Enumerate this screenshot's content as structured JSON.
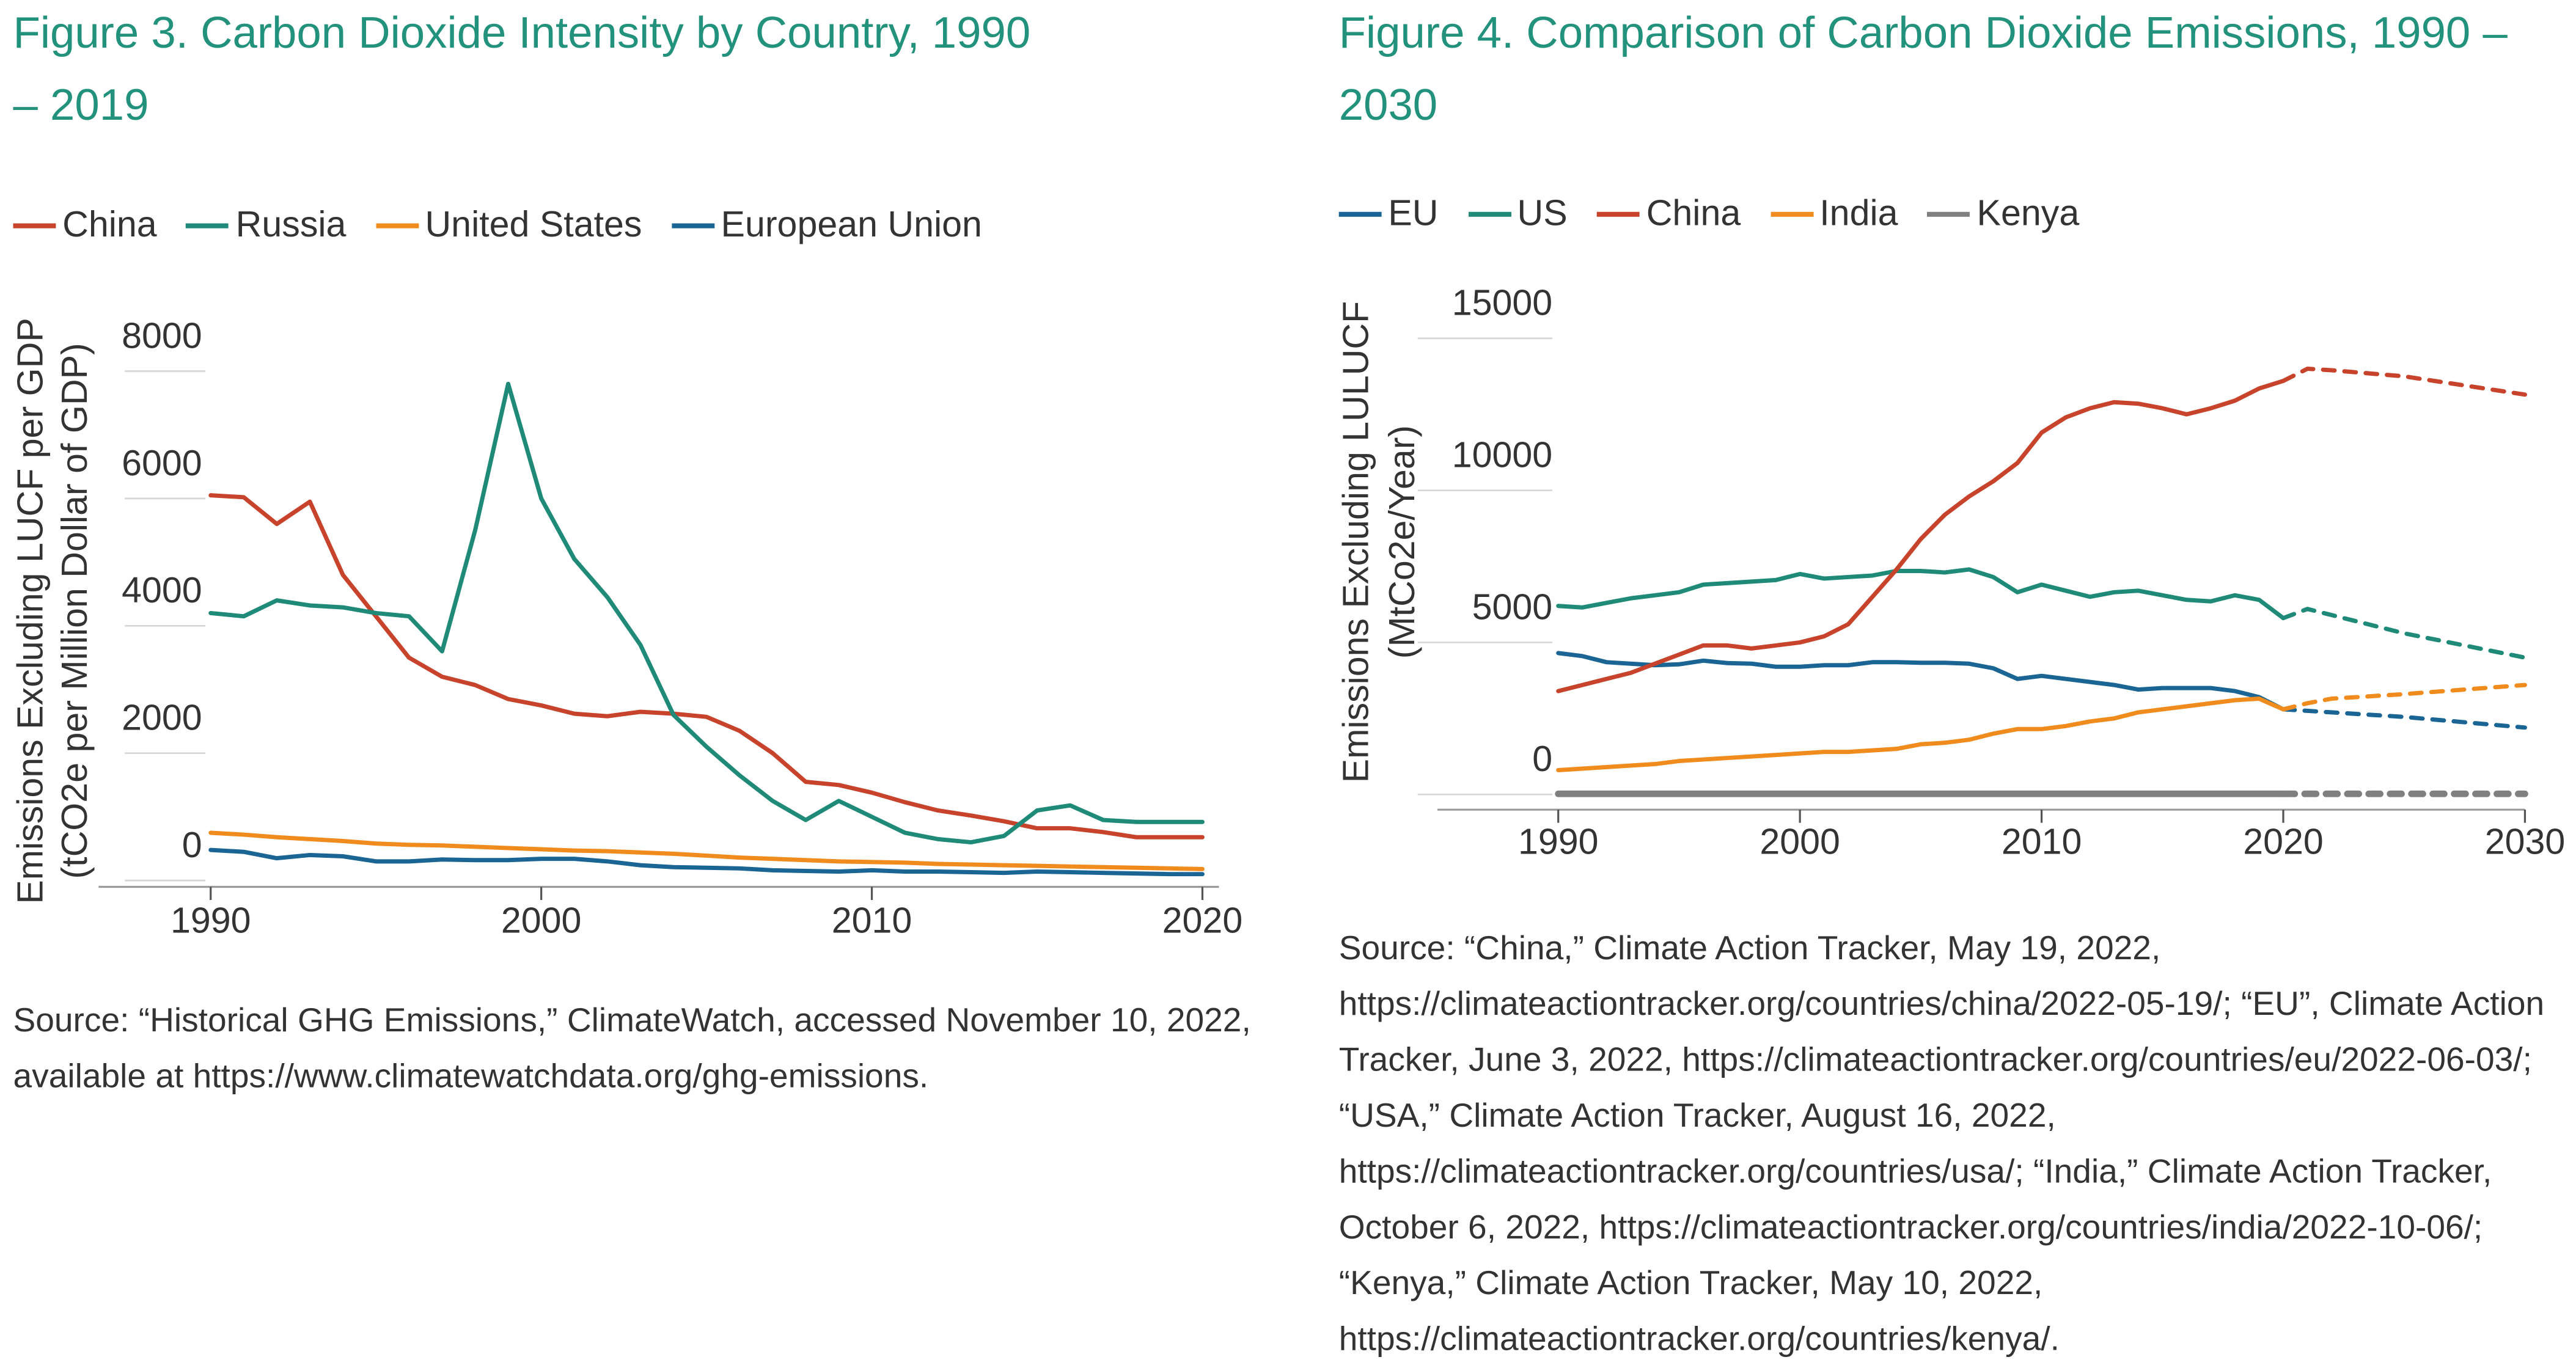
{
  "chart_data": [
    {
      "type": "line",
      "title": "Figure 3. Carbon Dioxide Intensity by Country, 1990 – 2019",
      "ylabel": [
        "Emissions Excluding LUCF per GDP",
        "(tCO2e per Million Dollar of GDP)"
      ],
      "x": [
        1990,
        1991,
        1992,
        1993,
        1994,
        1995,
        1996,
        1997,
        1998,
        1999,
        2000,
        2001,
        2002,
        2003,
        2004,
        2005,
        2006,
        2007,
        2008,
        2009,
        2010,
        2011,
        2012,
        2013,
        2014,
        2015,
        2016,
        2017,
        2018,
        2019,
        2020
      ],
      "series": [
        {
          "name": "China",
          "color": "#c8432b",
          "values": [
            6050,
            6020,
            5600,
            5950,
            4800,
            4150,
            3500,
            3200,
            3070,
            2850,
            2750,
            2620,
            2580,
            2650,
            2620,
            2570,
            2350,
            2000,
            1550,
            1500,
            1380,
            1230,
            1100,
            1020,
            930,
            820,
            820,
            760,
            680,
            680,
            680
          ]
        },
        {
          "name": "Russia",
          "color": "#1f8a78",
          "values": [
            4200,
            4150,
            4400,
            4320,
            4290,
            4200,
            4150,
            3600,
            5500,
            7800,
            6000,
            5050,
            4450,
            3700,
            2600,
            2100,
            1650,
            1250,
            950,
            1250,
            1000,
            750,
            650,
            600,
            700,
            1100,
            1180,
            950,
            920,
            920,
            920
          ]
        },
        {
          "name": "United States",
          "color": "#f08c1e",
          "values": [
            750,
            720,
            680,
            650,
            620,
            580,
            560,
            550,
            530,
            510,
            490,
            470,
            460,
            440,
            420,
            390,
            360,
            340,
            320,
            300,
            290,
            280,
            260,
            250,
            240,
            230,
            220,
            210,
            200,
            190,
            180
          ]
        },
        {
          "name": "European Union",
          "color": "#1a6593",
          "values": [
            480,
            450,
            350,
            400,
            380,
            300,
            300,
            330,
            320,
            320,
            340,
            340,
            300,
            240,
            210,
            200,
            190,
            160,
            150,
            140,
            160,
            140,
            140,
            130,
            120,
            140,
            130,
            120,
            110,
            100,
            100
          ]
        }
      ],
      "xlim": [
        1988,
        2020.5
      ],
      "ylim": [
        -100,
        8000
      ],
      "xticks": [
        1990,
        2000,
        2010,
        2020
      ],
      "yticks": [
        0,
        2000,
        4000,
        6000,
        8000
      ],
      "grid": true,
      "source": "Source: “Historical GHG Emissions,” ClimateWatch, accessed November 10, 2022, available at https://www.climatewatchdata.org/ghg-emissions."
    },
    {
      "type": "line",
      "title": "Figure 4. Comparison of Carbon Dioxide Emissions, 1990 – 2030",
      "ylabel": [
        "Emissions Excluding LULUCF",
        "(MtCo2e/Year)"
      ],
      "x": [
        1990,
        1991,
        1992,
        1993,
        1994,
        1995,
        1996,
        1997,
        1998,
        1999,
        2000,
        2001,
        2002,
        2003,
        2004,
        2005,
        2006,
        2007,
        2008,
        2009,
        2010,
        2011,
        2012,
        2013,
        2014,
        2015,
        2016,
        2017,
        2018,
        2019,
        2020,
        2021,
        2022,
        2025,
        2030
      ],
      "projection_from": 2020,
      "series": [
        {
          "name": "EU",
          "color": "#1a6593",
          "values": [
            4650,
            4550,
            4350,
            4300,
            4250,
            4280,
            4400,
            4320,
            4300,
            4200,
            4200,
            4250,
            4250,
            4350,
            4350,
            4330,
            4330,
            4300,
            4150,
            3800,
            3900,
            3800,
            3700,
            3600,
            3450,
            3500,
            3500,
            3500,
            3400,
            3200,
            2800,
            2750,
            2700,
            2550,
            2200
          ]
        },
        {
          "name": "US",
          "color": "#1f8a78",
          "values": [
            6200,
            6150,
            6300,
            6450,
            6550,
            6650,
            6900,
            6950,
            7000,
            7050,
            7250,
            7100,
            7150,
            7200,
            7350,
            7350,
            7300,
            7400,
            7150,
            6650,
            6900,
            6700,
            6500,
            6650,
            6700,
            6550,
            6400,
            6350,
            6550,
            6400,
            5800,
            6100,
            5900,
            5300,
            4500
          ]
        },
        {
          "name": "China",
          "color": "#c8432b",
          "values": [
            3400,
            3600,
            3800,
            4000,
            4300,
            4600,
            4900,
            4900,
            4800,
            4900,
            5000,
            5200,
            5600,
            6500,
            7400,
            8400,
            9200,
            9800,
            10300,
            10900,
            11900,
            12400,
            12700,
            12900,
            12850,
            12700,
            12500,
            12700,
            12950,
            13350,
            13600,
            14000,
            13950,
            13750,
            13150
          ]
        },
        {
          "name": "India",
          "color": "#f08c1e",
          "values": [
            800,
            850,
            900,
            950,
            1000,
            1100,
            1150,
            1200,
            1250,
            1300,
            1350,
            1400,
            1400,
            1450,
            1500,
            1650,
            1700,
            1800,
            2000,
            2150,
            2150,
            2250,
            2400,
            2500,
            2700,
            2800,
            2900,
            3000,
            3100,
            3150,
            2800,
            3000,
            3150,
            3300,
            3600
          ]
        },
        {
          "name": "Kenya",
          "color": "#808080",
          "values": [
            20,
            20,
            20,
            20,
            20,
            20,
            20,
            20,
            20,
            20,
            20,
            20,
            20,
            20,
            20,
            20,
            20,
            20,
            20,
            20,
            20,
            20,
            20,
            20,
            20,
            20,
            20,
            20,
            20,
            20,
            20,
            20,
            20,
            20,
            20
          ]
        }
      ],
      "xlim": [
        1985,
        2030
      ],
      "ylim": [
        -500,
        15000
      ],
      "xticks": [
        1990,
        2000,
        2010,
        2020,
        2030
      ],
      "yticks": [
        0,
        5000,
        10000,
        15000
      ],
      "grid": true,
      "source": "Source: “China,” Climate Action Tracker, May 19, 2022, https://climateactiontracker.org/countries/china/2022-05-19/; “EU”, Climate Action Tracker, June 3, 2022, https://climateactiontracker.org/countries/eu/2022-06-03/; “USA,” Climate Action Tracker, August 16, 2022, https://climateactiontracker.org/countries/usa/; “India,” Climate Action Tracker, October 6, 2022, https://climateactiontracker.org/countries/india/2022-10-06/; “Kenya,” Climate Action Tracker, May 10, 2022, https://climateactiontracker.org/countries/kenya/."
    }
  ]
}
